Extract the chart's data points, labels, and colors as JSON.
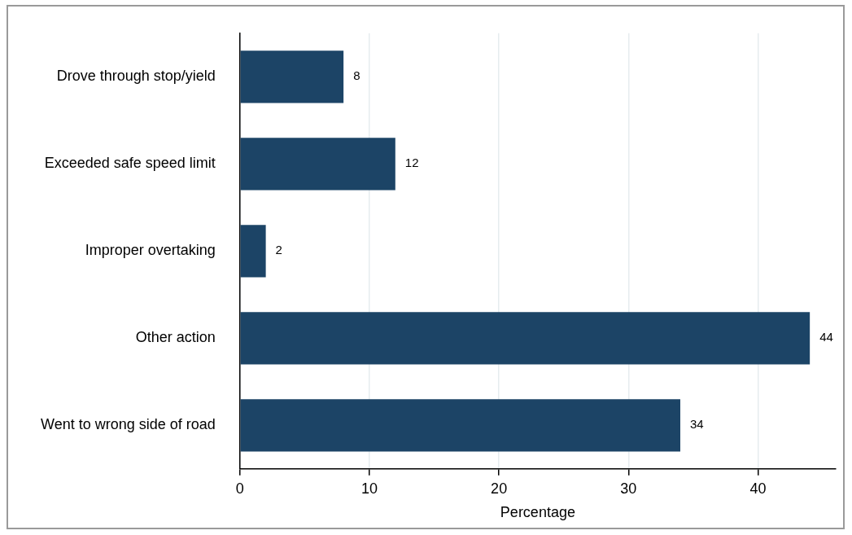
{
  "chart_data": {
    "type": "bar",
    "orientation": "horizontal",
    "xlabel": "Percentage",
    "categories": [
      "Drove through stop/yield",
      "Exceeded safe speed limit",
      "Improper overtaking",
      "Other action",
      "Went to wrong side of road"
    ],
    "values": [
      8,
      12,
      2,
      44,
      34
    ],
    "color": "#1c4466",
    "xlim": [
      0,
      46
    ],
    "xticks": [
      0,
      10,
      20,
      30,
      40
    ],
    "grid": "x",
    "data_labels": true,
    "legend": false
  }
}
